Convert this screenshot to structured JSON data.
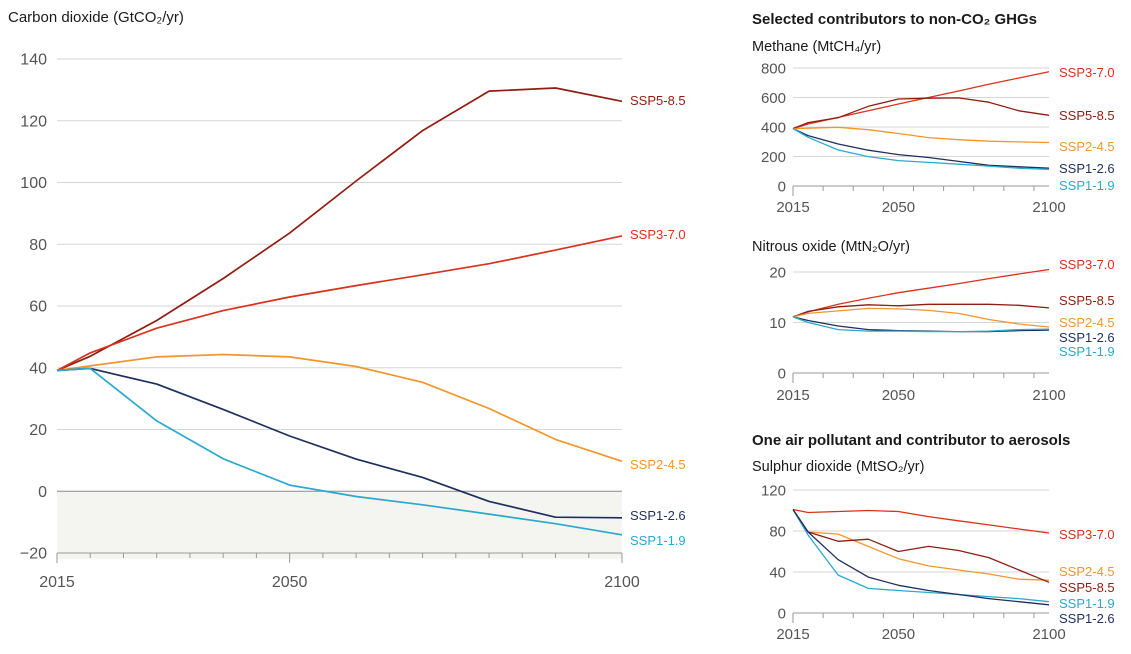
{
  "colors": {
    "SSP5-8.5": "#8f1d12",
    "SSP3-7.0": "#d8311c",
    "SSP2-4.5": "#f2962b",
    "SSP1-2.6": "#1e2f5e",
    "SSP1-1.9": "#2aa9cf",
    "grid": "#d6d6d6",
    "negative_band": "#f4f4f0"
  },
  "right_section_titles": {
    "ghg": "Selected contributors to non-CO₂ GHGs",
    "aerosol": "One air pollutant and contributor to aerosols"
  },
  "chart_data": [
    {
      "id": "co2",
      "type": "line",
      "title": "Carbon dioxide (GtCO₂/yr)",
      "xlim": [
        2015,
        2100
      ],
      "ylim": [
        -22,
        145
      ],
      "xticks": [
        2015,
        2050,
        2100
      ],
      "yticks": [
        140,
        120,
        100,
        80,
        60,
        40,
        20,
        0,
        -20
      ],
      "ytick_labels": [
        "140",
        "120",
        "100",
        "80",
        "60",
        "40",
        "20",
        "0",
        "−20"
      ],
      "x": [
        2015,
        2020,
        2030,
        2040,
        2050,
        2060,
        2070,
        2080,
        2090,
        2100
      ],
      "series": [
        {
          "name": "SSP5-8.5",
          "values": [
            39.1,
            43.7,
            55.3,
            68.9,
            83.6,
            100.5,
            116.8,
            129.6,
            130.6,
            126.3
          ]
        },
        {
          "name": "SSP3-7.0",
          "values": [
            39.1,
            44.8,
            52.8,
            58.5,
            62.9,
            66.6,
            70.1,
            73.7,
            78.1,
            82.7
          ]
        },
        {
          "name": "SSP2-4.5",
          "values": [
            39.1,
            40.6,
            43.5,
            44.3,
            43.5,
            40.4,
            35.3,
            26.8,
            16.8,
            9.7
          ]
        },
        {
          "name": "SSP1-2.6",
          "values": [
            39.1,
            39.8,
            34.7,
            26.5,
            17.9,
            10.4,
            4.5,
            -3.3,
            -8.4,
            -8.6
          ]
        },
        {
          "name": "SSP1-1.9",
          "values": [
            39.1,
            39.8,
            22.8,
            10.5,
            2.0,
            -1.7,
            -4.4,
            -7.4,
            -10.5,
            -14.1
          ]
        }
      ]
    },
    {
      "id": "methane",
      "type": "line",
      "title": "Methane (MtCH₄/yr)",
      "xlim": [
        2015,
        2100
      ],
      "ylim": [
        0,
        830
      ],
      "xticks": [
        2015,
        2050,
        2100
      ],
      "yticks": [
        800,
        600,
        400,
        200,
        0
      ],
      "x": [
        2015,
        2020,
        2030,
        2040,
        2050,
        2060,
        2070,
        2080,
        2090,
        2100
      ],
      "series": [
        {
          "name": "SSP3-7.0",
          "values": [
            389,
            420,
            465,
            510,
            556,
            600,
            644,
            690,
            732,
            775
          ]
        },
        {
          "name": "SSP5-8.5",
          "values": [
            389,
            430,
            463,
            540,
            590,
            595,
            597,
            568,
            510,
            479
          ]
        },
        {
          "name": "SSP2-4.5",
          "values": [
            389,
            392,
            398,
            382,
            356,
            328,
            314,
            304,
            299,
            295
          ]
        },
        {
          "name": "SSP1-2.6",
          "values": [
            389,
            342,
            285,
            243,
            213,
            193,
            167,
            140,
            130,
            121
          ]
        },
        {
          "name": "SSP1-1.9",
          "values": [
            389,
            330,
            244,
            199,
            172,
            160,
            148,
            135,
            121,
            113
          ]
        }
      ]
    },
    {
      "id": "n2o",
      "type": "line",
      "title": "Nitrous oxide (MtN₂O/yr)",
      "xlim": [
        2015,
        2100
      ],
      "ylim": [
        0,
        22
      ],
      "xticks": [
        2015,
        2050,
        2100
      ],
      "yticks": [
        20,
        10,
        0
      ],
      "x": [
        2015,
        2020,
        2030,
        2040,
        2050,
        2060,
        2070,
        2080,
        2090,
        2100
      ],
      "series": [
        {
          "name": "SSP3-7.0",
          "values": [
            11.1,
            12.1,
            13.6,
            14.8,
            15.9,
            16.8,
            17.7,
            18.7,
            19.6,
            20.5
          ]
        },
        {
          "name": "SSP5-8.5",
          "values": [
            11.1,
            12.2,
            13.1,
            13.5,
            13.3,
            13.6,
            13.6,
            13.6,
            13.4,
            12.9
          ]
        },
        {
          "name": "SSP2-4.5",
          "values": [
            11.1,
            11.8,
            12.3,
            12.8,
            12.7,
            12.4,
            11.8,
            10.6,
            9.7,
            9.1
          ]
        },
        {
          "name": "SSP1-2.6",
          "values": [
            11.1,
            10.4,
            9.3,
            8.6,
            8.4,
            8.3,
            8.2,
            8.2,
            8.4,
            8.5
          ]
        },
        {
          "name": "SSP1-1.9",
          "values": [
            11.1,
            10.0,
            8.6,
            8.3,
            8.3,
            8.2,
            8.2,
            8.3,
            8.6,
            8.7
          ]
        }
      ]
    },
    {
      "id": "so2",
      "type": "line",
      "title": "Sulphur dioxide (MtSO₂/yr)",
      "xlim": [
        2015,
        2100
      ],
      "ylim": [
        0,
        125
      ],
      "xticks": [
        2015,
        2050,
        2100
      ],
      "yticks": [
        120,
        80,
        40,
        0
      ],
      "x": [
        2015,
        2020,
        2030,
        2040,
        2050,
        2060,
        2070,
        2080,
        2090,
        2100
      ],
      "series": [
        {
          "name": "SSP3-7.0",
          "values": [
            101,
            98,
            99,
            100,
            99,
            94,
            90,
            86,
            82,
            78
          ]
        },
        {
          "name": "SSP2-4.5",
          "values": [
            101,
            79,
            77,
            65,
            53,
            46,
            42,
            38,
            33,
            32
          ]
        },
        {
          "name": "SSP5-8.5",
          "values": [
            101,
            79,
            70,
            72,
            60,
            65,
            61,
            54,
            42,
            30
          ]
        },
        {
          "name": "SSP1-1.9",
          "values": [
            101,
            76,
            37,
            24,
            22,
            20,
            18,
            16,
            14,
            11
          ]
        },
        {
          "name": "SSP1-2.6",
          "values": [
            101,
            79,
            52,
            35,
            27,
            22,
            18,
            14,
            11,
            8
          ]
        }
      ]
    }
  ]
}
